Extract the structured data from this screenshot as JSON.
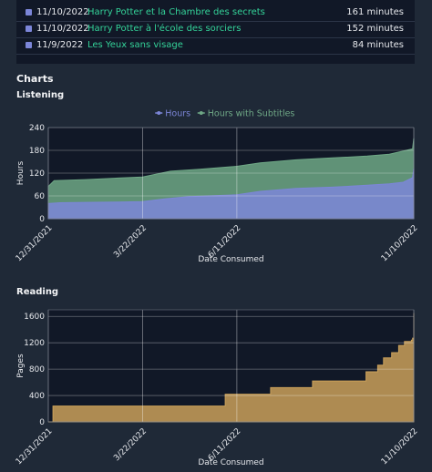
{
  "table": {
    "rows": [
      {
        "date": "11/10/2022",
        "title": "Harry Potter et la Chambre des secrets",
        "duration": "161 minutes"
      },
      {
        "date": "11/10/2022",
        "title": "Harry Potter à l'école des sorciers",
        "duration": "152 minutes"
      },
      {
        "date": "11/9/2022",
        "title": "Les Yeux sans visage",
        "duration": "84 minutes"
      }
    ]
  },
  "charts_heading": "Charts",
  "listening_heading": "Listening",
  "reading_heading": "Reading",
  "colors": {
    "hours": "#7c86d8",
    "subtitles": "#6fa886",
    "pages": "#caa05a",
    "plot_bg": "#111827",
    "link": "#34d399"
  },
  "chart_data": [
    {
      "type": "area",
      "legend": [
        "Hours",
        "Hours with Subtitles"
      ],
      "legend_position": "top-center",
      "xlabel": "Date Consumed",
      "ylabel": "Hours",
      "x_ticks": [
        "12/31/2021",
        "3/22/2022",
        "6/11/2022",
        "11/10/2022"
      ],
      "y_ticks": [
        0,
        60,
        120,
        180,
        240
      ],
      "ylim": [
        0,
        240
      ],
      "xlim": [
        "2021-12-31",
        "2022-11-10"
      ],
      "grid": true,
      "series": [
        {
          "name": "Hours",
          "x": [
            "2021-12-31",
            "2022-01-10",
            "2022-02-01",
            "2022-03-01",
            "2022-03-22",
            "2022-04-10",
            "2022-05-01",
            "2022-06-11",
            "2022-07-01",
            "2022-08-01",
            "2022-09-01",
            "2022-10-01",
            "2022-10-20",
            "2022-11-01",
            "2022-11-09",
            "2022-11-10"
          ],
          "values": [
            40,
            42,
            43,
            44,
            45,
            52,
            58,
            63,
            72,
            80,
            83,
            88,
            92,
            96,
            108,
            132
          ]
        },
        {
          "name": "Hours with Subtitles",
          "x": [
            "2021-12-31",
            "2022-01-05",
            "2022-02-01",
            "2022-03-01",
            "2022-03-22",
            "2022-04-15",
            "2022-05-10",
            "2022-06-11",
            "2022-07-01",
            "2022-08-01",
            "2022-09-01",
            "2022-10-01",
            "2022-10-20",
            "2022-11-01",
            "2022-11-09",
            "2022-11-10"
          ],
          "values": [
            85,
            100,
            103,
            107,
            110,
            125,
            130,
            138,
            147,
            155,
            160,
            165,
            170,
            178,
            184,
            212
          ]
        }
      ]
    },
    {
      "type": "area",
      "xlabel": "Date Consumed",
      "ylabel": "Pages",
      "x_ticks": [
        "12/31/2021",
        "3/22/2022",
        "6/11/2022",
        "11/10/2022"
      ],
      "y_ticks": [
        0,
        400,
        800,
        1200,
        1600
      ],
      "ylim": [
        0,
        1700
      ],
      "xlim": [
        "2021-12-31",
        "2022-11-10"
      ],
      "grid": true,
      "series": [
        {
          "name": "Pages",
          "step": true,
          "x": [
            "2021-12-31",
            "2022-01-04",
            "2022-05-20",
            "2022-06-01",
            "2022-07-10",
            "2022-08-15",
            "2022-09-30",
            "2022-10-10",
            "2022-10-15",
            "2022-10-22",
            "2022-10-28",
            "2022-11-02",
            "2022-11-08",
            "2022-11-09",
            "2022-11-10"
          ],
          "values": [
            0,
            240,
            240,
            420,
            520,
            620,
            760,
            860,
            970,
            1050,
            1160,
            1220,
            1240,
            1270,
            1650
          ]
        }
      ]
    }
  ]
}
